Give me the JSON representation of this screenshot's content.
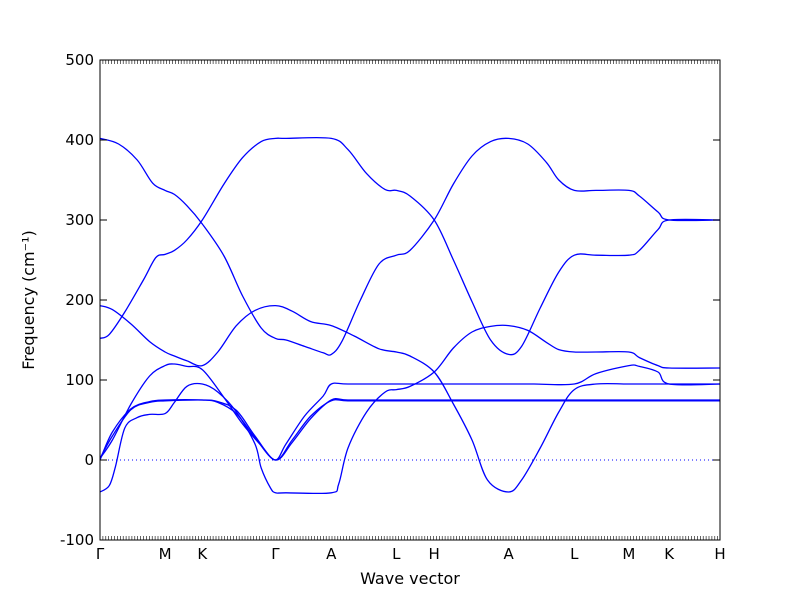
{
  "chart_data": {
    "type": "line",
    "xlabel": "Wave vector",
    "ylabel": "Frequency (cm⁻¹)",
    "ylim": [
      -100,
      500
    ],
    "yticks": [
      -100,
      0,
      100,
      200,
      300,
      400,
      500
    ],
    "grid": false,
    "zero_line": true,
    "line_color": "#0000ff",
    "zero_line_color": "#0000ff",
    "x_ticks": [
      {
        "label": "Γ",
        "pos": 0
      },
      {
        "label": "M",
        "pos": 0.105
      },
      {
        "label": "K",
        "pos": 0.165
      },
      {
        "label": "Γ",
        "pos": 0.283
      },
      {
        "label": "A",
        "pos": 0.373
      },
      {
        "label": "L",
        "pos": 0.478
      },
      {
        "label": "H",
        "pos": 0.539
      },
      {
        "label": "A",
        "pos": 0.659
      },
      {
        "label": "L",
        "pos": 0.765
      },
      {
        "label": "M",
        "pos": 0.853
      },
      {
        "label": "K",
        "pos": 0.918
      },
      {
        "label": "H",
        "pos": 1.0
      }
    ],
    "series": [
      {
        "values": [
          [
            0,
            402
          ],
          [
            0.03,
            395
          ],
          [
            0.06,
            375
          ],
          [
            0.085,
            346
          ],
          [
            0.105,
            337
          ],
          [
            0.12,
            332
          ],
          [
            0.14,
            318
          ],
          [
            0.165,
            295
          ],
          [
            0.2,
            255
          ],
          [
            0.23,
            205
          ],
          [
            0.26,
            165
          ],
          [
            0.283,
            152
          ],
          [
            0.3,
            150
          ],
          [
            0.33,
            142
          ],
          [
            0.36,
            134
          ],
          [
            0.373,
            132
          ],
          [
            0.39,
            148
          ],
          [
            0.42,
            200
          ],
          [
            0.45,
            245
          ],
          [
            0.478,
            256
          ],
          [
            0.5,
            262
          ],
          [
            0.539,
            300
          ],
          [
            0.57,
            345
          ],
          [
            0.6,
            380
          ],
          [
            0.63,
            398
          ],
          [
            0.659,
            402
          ],
          [
            0.69,
            395
          ],
          [
            0.72,
            372
          ],
          [
            0.74,
            350
          ],
          [
            0.765,
            337
          ],
          [
            0.8,
            337
          ],
          [
            0.853,
            337
          ],
          [
            0.87,
            330
          ],
          [
            0.9,
            310
          ],
          [
            0.918,
            300
          ],
          [
            1.0,
            300
          ]
        ]
      },
      {
        "values": [
          [
            0,
            152
          ],
          [
            0.015,
            157
          ],
          [
            0.04,
            185
          ],
          [
            0.07,
            225
          ],
          [
            0.09,
            253
          ],
          [
            0.105,
            257
          ],
          [
            0.12,
            262
          ],
          [
            0.14,
            275
          ],
          [
            0.165,
            300
          ],
          [
            0.2,
            345
          ],
          [
            0.23,
            378
          ],
          [
            0.26,
            398
          ],
          [
            0.283,
            402
          ],
          [
            0.3,
            402
          ],
          [
            0.373,
            402
          ],
          [
            0.4,
            388
          ],
          [
            0.43,
            358
          ],
          [
            0.46,
            338
          ],
          [
            0.478,
            337
          ],
          [
            0.5,
            330
          ],
          [
            0.539,
            300
          ],
          [
            0.57,
            250
          ],
          [
            0.6,
            198
          ],
          [
            0.63,
            150
          ],
          [
            0.659,
            132
          ],
          [
            0.68,
            142
          ],
          [
            0.71,
            190
          ],
          [
            0.74,
            235
          ],
          [
            0.765,
            256
          ],
          [
            0.8,
            256
          ],
          [
            0.853,
            256
          ],
          [
            0.87,
            262
          ],
          [
            0.9,
            288
          ],
          [
            0.918,
            300
          ],
          [
            1.0,
            300
          ]
        ]
      },
      {
        "values": [
          [
            0,
            193
          ],
          [
            0.02,
            188
          ],
          [
            0.05,
            170
          ],
          [
            0.08,
            148
          ],
          [
            0.105,
            135
          ],
          [
            0.12,
            130
          ],
          [
            0.14,
            124
          ],
          [
            0.165,
            118
          ],
          [
            0.19,
            135
          ],
          [
            0.22,
            168
          ],
          [
            0.25,
            187
          ],
          [
            0.283,
            193
          ],
          [
            0.31,
            186
          ],
          [
            0.34,
            173
          ],
          [
            0.373,
            168
          ],
          [
            0.41,
            155
          ],
          [
            0.45,
            139
          ],
          [
            0.478,
            135
          ],
          [
            0.5,
            130
          ],
          [
            0.539,
            110
          ],
          [
            0.57,
            70
          ],
          [
            0.6,
            25
          ],
          [
            0.625,
            -25
          ],
          [
            0.659,
            -40
          ],
          [
            0.68,
            -25
          ],
          [
            0.71,
            15
          ],
          [
            0.74,
            60
          ],
          [
            0.765,
            88
          ],
          [
            0.8,
            95
          ],
          [
            0.853,
            95
          ],
          [
            0.87,
            95
          ],
          [
            0.9,
            95
          ],
          [
            0.918,
            95
          ],
          [
            1.0,
            95
          ]
        ]
      },
      {
        "values": [
          [
            0,
            -40
          ],
          [
            0.015,
            -32
          ],
          [
            0.025,
            -8
          ],
          [
            0.04,
            40
          ],
          [
            0.06,
            53
          ],
          [
            0.08,
            57
          ],
          [
            0.105,
            58
          ],
          [
            0.12,
            72
          ],
          [
            0.14,
            92
          ],
          [
            0.165,
            95
          ],
          [
            0.19,
            85
          ],
          [
            0.22,
            60
          ],
          [
            0.25,
            20
          ],
          [
            0.26,
            -10
          ],
          [
            0.275,
            -35
          ],
          [
            0.283,
            -41
          ],
          [
            0.3,
            -41
          ],
          [
            0.373,
            -41
          ],
          [
            0.385,
            -30
          ],
          [
            0.4,
            15
          ],
          [
            0.43,
            60
          ],
          [
            0.46,
            85
          ],
          [
            0.478,
            88
          ],
          [
            0.5,
            92
          ],
          [
            0.539,
            110
          ],
          [
            0.57,
            140
          ],
          [
            0.6,
            160
          ],
          [
            0.63,
            167
          ],
          [
            0.659,
            168
          ],
          [
            0.69,
            162
          ],
          [
            0.72,
            147
          ],
          [
            0.74,
            138
          ],
          [
            0.765,
            135
          ],
          [
            0.8,
            135
          ],
          [
            0.853,
            135
          ],
          [
            0.87,
            128
          ],
          [
            0.9,
            118
          ],
          [
            0.918,
            115
          ],
          [
            1.0,
            115
          ]
        ]
      },
      {
        "values": [
          [
            0,
            2
          ],
          [
            0.02,
            25
          ],
          [
            0.05,
            70
          ],
          [
            0.08,
            105
          ],
          [
            0.105,
            118
          ],
          [
            0.12,
            120
          ],
          [
            0.14,
            117
          ],
          [
            0.165,
            113
          ],
          [
            0.2,
            78
          ],
          [
            0.23,
            45
          ],
          [
            0.26,
            18
          ],
          [
            0.283,
            0
          ],
          [
            0.3,
            20
          ],
          [
            0.33,
            55
          ],
          [
            0.36,
            80
          ],
          [
            0.373,
            95
          ],
          [
            0.4,
            95
          ],
          [
            0.478,
            95
          ],
          [
            0.539,
            95
          ],
          [
            0.6,
            95
          ],
          [
            0.659,
            95
          ],
          [
            0.7,
            95
          ],
          [
            0.765,
            95
          ],
          [
            0.8,
            108
          ],
          [
            0.853,
            118
          ],
          [
            0.87,
            117
          ],
          [
            0.9,
            110
          ],
          [
            0.918,
            95
          ],
          [
            1.0,
            95
          ]
        ]
      },
      {
        "values": [
          [
            0,
            2
          ],
          [
            0.02,
            30
          ],
          [
            0.05,
            63
          ],
          [
            0.08,
            72
          ],
          [
            0.105,
            74
          ],
          [
            0.165,
            75
          ],
          [
            0.19,
            73
          ],
          [
            0.22,
            62
          ],
          [
            0.25,
            30
          ],
          [
            0.283,
            0
          ],
          [
            0.31,
            25
          ],
          [
            0.34,
            55
          ],
          [
            0.373,
            74
          ],
          [
            0.4,
            74
          ],
          [
            0.478,
            74
          ],
          [
            0.539,
            74
          ],
          [
            0.6,
            74
          ],
          [
            0.659,
            74
          ],
          [
            0.7,
            74
          ],
          [
            0.765,
            74
          ],
          [
            0.8,
            74
          ],
          [
            0.853,
            74
          ],
          [
            0.918,
            74
          ],
          [
            1.0,
            74
          ]
        ]
      },
      {
        "values": [
          [
            0,
            0
          ],
          [
            0.02,
            35
          ],
          [
            0.05,
            64
          ],
          [
            0.08,
            73
          ],
          [
            0.105,
            75
          ],
          [
            0.165,
            75
          ],
          [
            0.19,
            72
          ],
          [
            0.22,
            58
          ],
          [
            0.25,
            28
          ],
          [
            0.283,
            0
          ],
          [
            0.31,
            22
          ],
          [
            0.34,
            52
          ],
          [
            0.373,
            75
          ],
          [
            0.4,
            75
          ],
          [
            0.478,
            75
          ],
          [
            0.539,
            75
          ],
          [
            0.6,
            75
          ],
          [
            0.659,
            75
          ],
          [
            0.7,
            75
          ],
          [
            0.765,
            75
          ],
          [
            0.8,
            75
          ],
          [
            0.853,
            75
          ],
          [
            0.918,
            75
          ],
          [
            1.0,
            75
          ]
        ]
      }
    ]
  }
}
